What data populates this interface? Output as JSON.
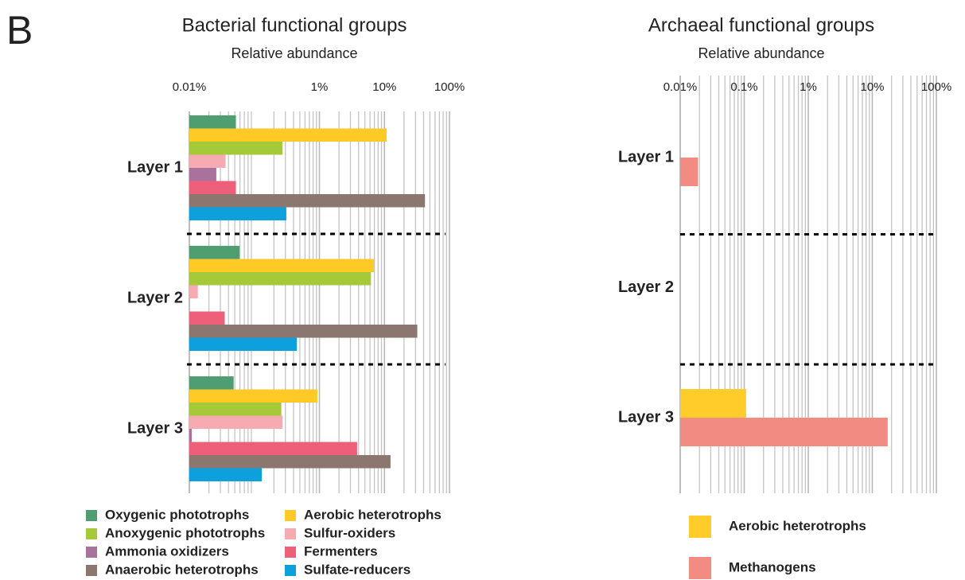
{
  "panel_label": "B",
  "chart_data": [
    {
      "type": "bar",
      "orientation": "horizontal",
      "title": "Bacterial functional groups",
      "subtitle": "Relative abundance",
      "xscale": "log",
      "xlim": [
        0.01,
        100
      ],
      "xticks": [
        {
          "value": 0.01,
          "label": "0.01%"
        },
        {
          "value": 1,
          "label": "1%"
        },
        {
          "value": 10,
          "label": "10%"
        },
        {
          "value": 100,
          "label": "100%"
        }
      ],
      "grid": true,
      "categories": [
        "Layer 1",
        "Layer 2",
        "Layer 3"
      ],
      "series": [
        {
          "name": "Oxygenic phototrophs",
          "color": "#4e9e72",
          "values": [
            0.052,
            0.059,
            0.048
          ]
        },
        {
          "name": "Aerobic heterotrophs",
          "color": "#ffc926",
          "values": [
            10.8,
            6.9,
            0.93
          ]
        },
        {
          "name": "Anoxygenic phototrophs",
          "color": "#a6c93a",
          "values": [
            0.27,
            6.2,
            0.26
          ]
        },
        {
          "name": "Sulfur-oxiders",
          "color": "#f6aab2",
          "values": [
            0.036,
            0.0135,
            0.27
          ]
        },
        {
          "name": "Ammonia oxidizers",
          "color": "#a8729c",
          "values": [
            0.026,
            null,
            0.0109
          ]
        },
        {
          "name": "Fermenters",
          "color": "#ee5f7a",
          "values": [
            0.052,
            0.035,
            3.8
          ]
        },
        {
          "name": "Anaerobic heterotrophs",
          "color": "#8c7670",
          "values": [
            42,
            32,
            12.4
          ]
        },
        {
          "name": "Sulfate-reducers",
          "color": "#0ea0dc",
          "values": [
            0.31,
            0.45,
            0.13
          ]
        }
      ]
    },
    {
      "type": "bar",
      "orientation": "horizontal",
      "title": "Archaeal functional groups",
      "subtitle": "Relative abundance",
      "xscale": "log",
      "xlim": [
        0.01,
        100
      ],
      "xticks": [
        {
          "value": 0.01,
          "label": "0.01%"
        },
        {
          "value": 0.1,
          "label": "0.1%"
        },
        {
          "value": 1,
          "label": "1%"
        },
        {
          "value": 10,
          "label": "10%"
        },
        {
          "value": 100,
          "label": "100%"
        }
      ],
      "grid": true,
      "categories": [
        "Layer 1",
        "Layer 2",
        "Layer 3"
      ],
      "series": [
        {
          "name": "Aerobic heterotrophs",
          "color": "#ffcc29",
          "values": [
            null,
            null,
            0.107
          ]
        },
        {
          "name": "Methanogens",
          "color": "#f28b82",
          "values": [
            0.019,
            null,
            17.4
          ]
        }
      ]
    }
  ]
}
